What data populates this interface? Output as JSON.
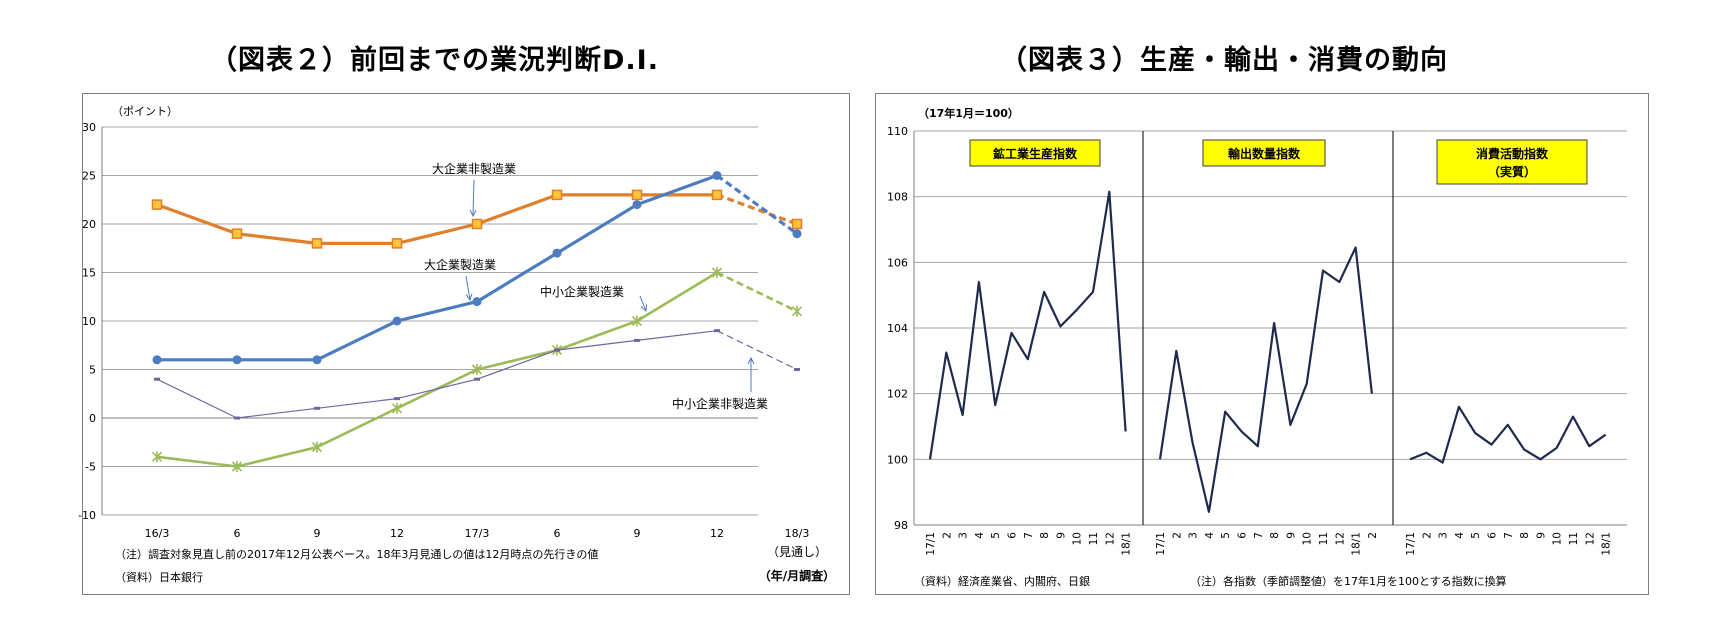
{
  "titles": {
    "left": "（図表２）前回までの業況判断D.I.",
    "right": "（図表３）生産・輸出・消費の動向"
  },
  "chart_data": [
    {
      "type": "line",
      "title": "（図表２）前回までの業況判断D.I.",
      "y_unit_label": "（ポイント）",
      "ylim": [
        -10,
        30
      ],
      "y_ticks": [
        30,
        25,
        20,
        15,
        10,
        5,
        0,
        -5,
        -10
      ],
      "categories": [
        "16/3",
        "6",
        "9",
        "12",
        "17/3",
        "6",
        "9",
        "12",
        "18/3"
      ],
      "x_sublabel": "（見通し）",
      "x_unit_label": "（年/月調査）",
      "grid": true,
      "series": [
        {
          "name": "大企業非製造業",
          "color": "#e07f2c",
          "marker": "square",
          "values": [
            22,
            19,
            18,
            18,
            20,
            23,
            23,
            23,
            20
          ],
          "dashed_last": true
        },
        {
          "name": "大企業製造業",
          "color": "#4e7cc0",
          "marker": "circle",
          "values": [
            6,
            6,
            6,
            10,
            12,
            17,
            22,
            25,
            19
          ],
          "dashed_last": true
        },
        {
          "name": "中小企業製造業",
          "color": "#9bbb59",
          "marker": "star",
          "values": [
            -4,
            -5,
            -3,
            1,
            5,
            7,
            10,
            15,
            11
          ],
          "dashed_last": true
        },
        {
          "name": "中小企業非製造業",
          "color": "#7064a0",
          "marker": "dash",
          "values": [
            4,
            0,
            1,
            2,
            4,
            7,
            8,
            9,
            5
          ],
          "dashed_last": true
        }
      ],
      "notes": [
        "（注）調査対象見直し前の2017年12月公表ベース。18年3月見通しの値は12月時点の先行きの値",
        "（資料）日本銀行"
      ]
    },
    {
      "type": "line",
      "title": "（図表３）生産・輸出・消費の動向",
      "y_unit_label": "（17年1月＝100）",
      "ylim": [
        98,
        110
      ],
      "y_ticks": [
        110,
        108,
        106,
        104,
        102,
        100,
        98
      ],
      "grid": true,
      "line_color": "#1f2a4d",
      "panels": [
        {
          "name": "鉱工業生産指数",
          "name_line2": "",
          "categories": [
            "17/1",
            "2",
            "3",
            "4",
            "5",
            "6",
            "7",
            "8",
            "9",
            "10",
            "11",
            "12",
            "18/1"
          ],
          "values": [
            100.0,
            103.25,
            101.35,
            105.4,
            101.65,
            103.85,
            103.05,
            105.1,
            104.05,
            104.55,
            105.1,
            108.15,
            100.85
          ]
        },
        {
          "name": "輸出数量指数",
          "name_line2": "",
          "categories": [
            "17/1",
            "2",
            "3",
            "4",
            "5",
            "6",
            "7",
            "8",
            "9",
            "10",
            "11",
            "12",
            "18/1",
            "2"
          ],
          "values": [
            100.0,
            103.3,
            100.5,
            98.4,
            101.45,
            100.85,
            100.4,
            104.15,
            101.05,
            102.3,
            105.75,
            105.4,
            106.45,
            102.0
          ]
        },
        {
          "name": "消費活動指数",
          "name_line2": "（実質）",
          "categories": [
            "17/1",
            "2",
            "3",
            "4",
            "5",
            "6",
            "7",
            "8",
            "9",
            "10",
            "11",
            "12",
            "18/1"
          ],
          "values": [
            100.0,
            100.2,
            99.9,
            101.6,
            100.8,
            100.45,
            101.05,
            100.3,
            100.0,
            100.35,
            101.3,
            100.4,
            100.75
          ]
        }
      ],
      "notes": [
        "（資料）経済産業省、内閣府、日銀",
        "（注）各指数（季節調整値）を17年1月を100とする指数に換算"
      ]
    }
  ]
}
